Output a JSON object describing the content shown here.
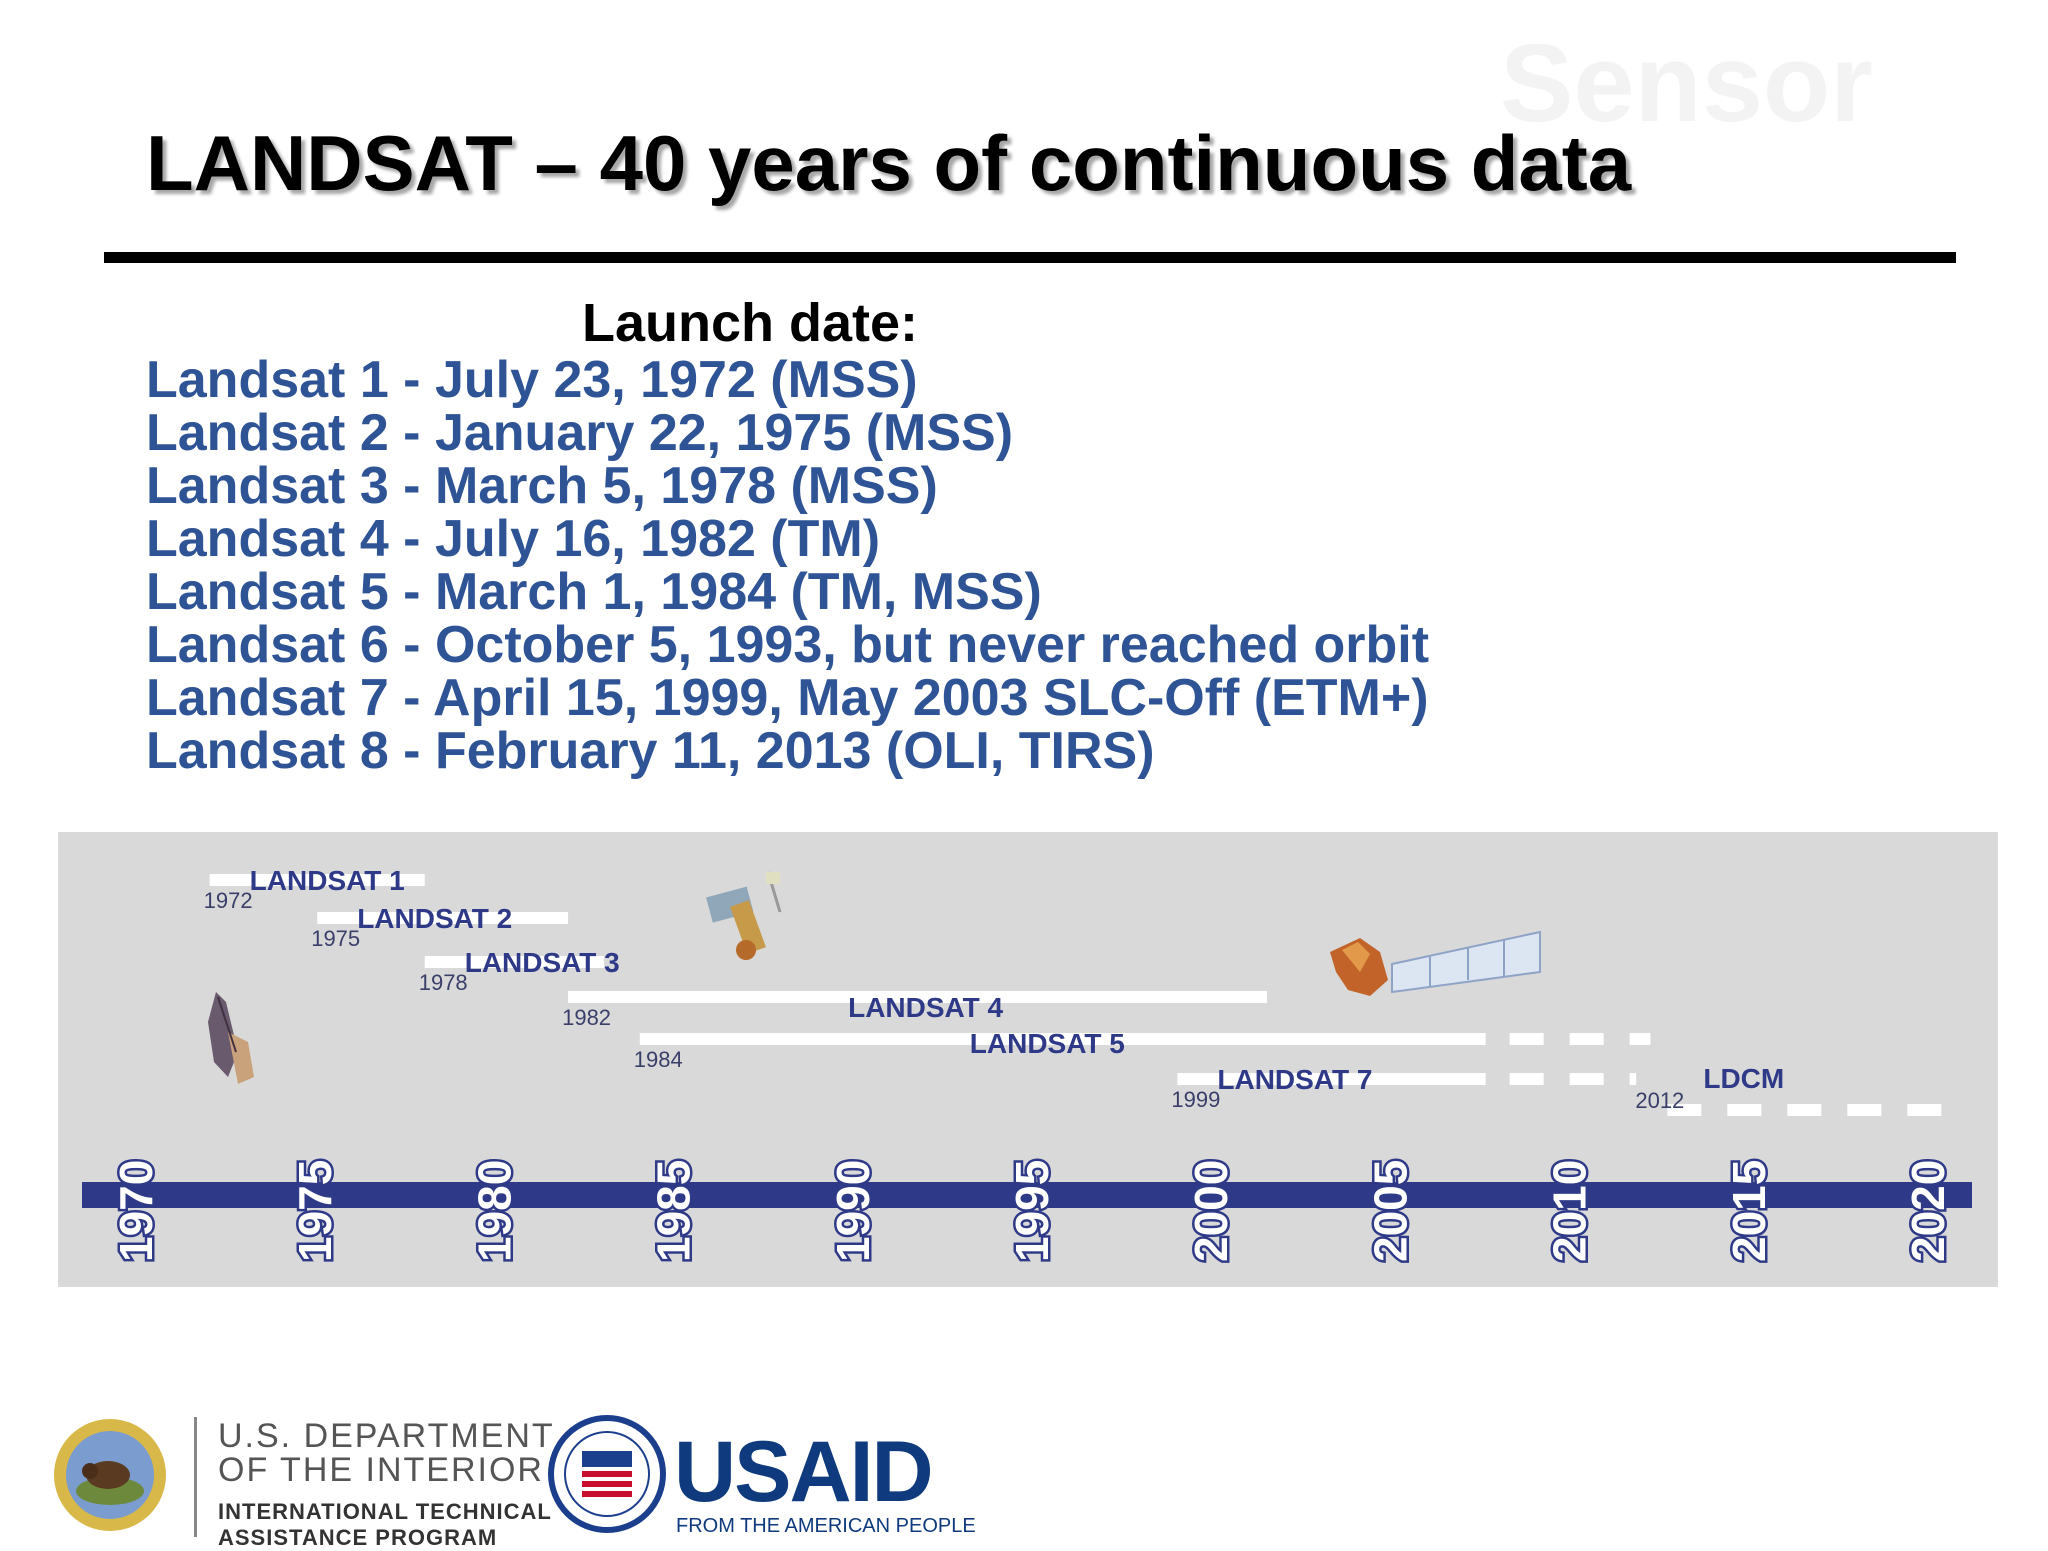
{
  "slide": {
    "watermark": "Sensor",
    "title": "LANDSAT – 40 years of continuous data",
    "launch_heading": "Launch date:",
    "launches": [
      "Landsat 1 - July 23, 1972 (MSS)",
      "Landsat 2 - January 22, 1975 (MSS)",
      "Landsat 3 - March 5, 1978 (MSS)",
      "Landsat 4 - July 16, 1982 (TM)",
      "Landsat 5 - March 1, 1984 (TM, MSS)",
      "Landsat 6 - October 5, 1993, but never reached orbit",
      "Landsat 7 - April 15, 1999, May 2003 SLC-Off (ETM+)",
      "Landsat 8 - February 11, 2013 (OLI, TIRS)"
    ]
  },
  "timeline": {
    "axis_years": [
      1970,
      1975,
      1980,
      1985,
      1990,
      1995,
      2000,
      2005,
      2010,
      2015,
      2020
    ],
    "axis_color": "#2e3a87",
    "bar_color": "#ffffff",
    "missions": [
      {
        "name": "LANDSAT 1",
        "start": 1972,
        "end": 1978,
        "start_label": "1972",
        "row": 0
      },
      {
        "name": "LANDSAT 2",
        "start": 1975,
        "end": 1982,
        "start_label": "1975",
        "row": 1
      },
      {
        "name": "LANDSAT 3",
        "start": 1978,
        "end": 1983,
        "start_label": "1978",
        "row": 2
      },
      {
        "name": "LANDSAT 4",
        "start": 1982,
        "end": 2001.5,
        "start_label": "1982",
        "row": 3
      },
      {
        "name": "LANDSAT 5",
        "start": 1984,
        "end": 2007.6,
        "dashed_to": 2012.2,
        "start_label": "1984",
        "row": 4
      },
      {
        "name": "LANDSAT 7",
        "start": 1999,
        "end": 2007.6,
        "dashed_to": 2011.8,
        "start_label": "1999",
        "row": 5
      },
      {
        "name": "LDCM",
        "start": 2012,
        "dashed_from": 2012,
        "dashed_to": 2020.5,
        "start_label": "2012",
        "row": 6
      }
    ]
  },
  "footer": {
    "doi_line1": "U.S. DEPARTMENT",
    "doi_line2": "OF THE INTERIOR",
    "doi_line3": "INTERNATIONAL TECHNICAL",
    "doi_line4": "ASSISTANCE PROGRAM",
    "usaid_word": "USAID",
    "usaid_tagline": "FROM THE AMERICAN PEOPLE"
  }
}
